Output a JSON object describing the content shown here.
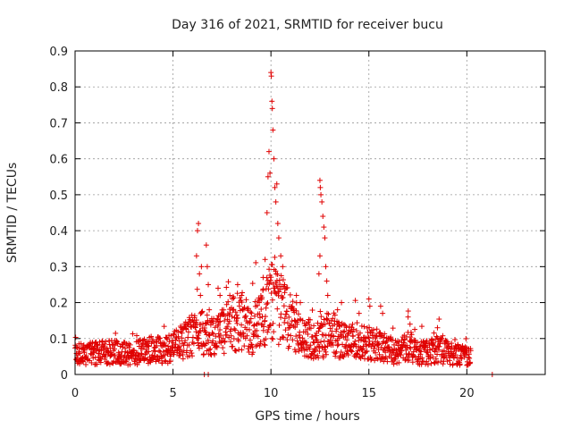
{
  "chart_data": {
    "type": "scatter",
    "title": "Day 316 of 2021, SRMTID for receiver bucu",
    "xlabel": "GPS time / hours",
    "ylabel": "SRMTID / TECUs",
    "xlim": [
      0,
      24
    ],
    "ylim": [
      0,
      0.9
    ],
    "xticks": [
      0,
      5,
      10,
      15,
      20
    ],
    "xtick_labels": [
      "0",
      "5",
      "10",
      "15",
      "20"
    ],
    "yticks": [
      0,
      0.1,
      0.2,
      0.3,
      0.4,
      0.5,
      0.6,
      0.7,
      0.8,
      0.9
    ],
    "ytick_labels": [
      "0",
      "0.1",
      "0.2",
      "0.3",
      "0.4",
      "0.5",
      "0.6",
      "0.7",
      "0.8",
      "0.9"
    ],
    "grid": true,
    "marker": "+",
    "color": "#e00000",
    "series": [
      {
        "name": "bucu",
        "baseline_profile": [
          [
            0.0,
            0.055
          ],
          [
            1.0,
            0.06
          ],
          [
            2.0,
            0.062
          ],
          [
            3.0,
            0.058
          ],
          [
            4.0,
            0.07
          ],
          [
            4.5,
            0.065
          ],
          [
            5.0,
            0.075
          ],
          [
            5.5,
            0.09
          ],
          [
            6.0,
            0.11
          ],
          [
            6.5,
            0.12
          ],
          [
            7.0,
            0.1
          ],
          [
            7.5,
            0.12
          ],
          [
            8.0,
            0.14
          ],
          [
            8.5,
            0.15
          ],
          [
            9.0,
            0.12
          ],
          [
            9.5,
            0.15
          ],
          [
            10.0,
            0.2
          ],
          [
            10.5,
            0.18
          ],
          [
            11.0,
            0.15
          ],
          [
            11.5,
            0.12
          ],
          [
            12.0,
            0.1
          ],
          [
            12.5,
            0.09
          ],
          [
            13.0,
            0.12
          ],
          [
            13.5,
            0.1
          ],
          [
            14.0,
            0.09
          ],
          [
            14.5,
            0.1
          ],
          [
            15.0,
            0.09
          ],
          [
            15.5,
            0.08
          ],
          [
            16.0,
            0.07
          ],
          [
            16.5,
            0.06
          ],
          [
            17.0,
            0.08
          ],
          [
            17.5,
            0.06
          ],
          [
            18.0,
            0.06
          ],
          [
            18.5,
            0.07
          ],
          [
            19.0,
            0.06
          ],
          [
            19.5,
            0.055
          ],
          [
            20.0,
            0.05
          ],
          [
            20.2,
            0.05
          ]
        ],
        "spike_points": [
          [
            6.2,
            0.33
          ],
          [
            6.25,
            0.4
          ],
          [
            6.3,
            0.42
          ],
          [
            6.35,
            0.28
          ],
          [
            6.4,
            0.22
          ],
          [
            6.45,
            0.3
          ],
          [
            6.7,
            0.36
          ],
          [
            6.75,
            0.3
          ],
          [
            6.8,
            0.25
          ],
          [
            6.85,
            0.18
          ],
          [
            7.3,
            0.24
          ],
          [
            7.4,
            0.22
          ],
          [
            7.9,
            0.22
          ],
          [
            8.3,
            0.25
          ],
          [
            8.5,
            0.22
          ],
          [
            9.4,
            0.2
          ],
          [
            9.6,
            0.27
          ],
          [
            9.7,
            0.32
          ],
          [
            9.8,
            0.45
          ],
          [
            9.85,
            0.55
          ],
          [
            9.9,
            0.62
          ],
          [
            9.95,
            0.56
          ],
          [
            10.0,
            0.84
          ],
          [
            10.02,
            0.83
          ],
          [
            10.05,
            0.76
          ],
          [
            10.07,
            0.74
          ],
          [
            10.1,
            0.68
          ],
          [
            10.15,
            0.6
          ],
          [
            10.2,
            0.52
          ],
          [
            10.25,
            0.48
          ],
          [
            10.3,
            0.53
          ],
          [
            10.35,
            0.42
          ],
          [
            10.4,
            0.38
          ],
          [
            10.5,
            0.33
          ],
          [
            10.6,
            0.3
          ],
          [
            10.7,
            0.25
          ],
          [
            11.3,
            0.22
          ],
          [
            11.5,
            0.2
          ],
          [
            12.5,
            0.54
          ],
          [
            12.52,
            0.52
          ],
          [
            12.55,
            0.5
          ],
          [
            12.6,
            0.48
          ],
          [
            12.65,
            0.44
          ],
          [
            12.7,
            0.41
          ],
          [
            12.75,
            0.38
          ],
          [
            12.5,
            0.33
          ],
          [
            12.8,
            0.3
          ],
          [
            12.85,
            0.26
          ],
          [
            12.45,
            0.28
          ],
          [
            12.9,
            0.22
          ],
          [
            13.4,
            0.18
          ],
          [
            13.6,
            0.2
          ],
          [
            14.5,
            0.17
          ],
          [
            15.0,
            0.21
          ],
          [
            15.05,
            0.19
          ],
          [
            15.6,
            0.19
          ],
          [
            15.7,
            0.17
          ],
          [
            17.0,
            0.16
          ],
          [
            17.1,
            0.14
          ],
          [
            18.5,
            0.13
          ]
        ],
        "zero_points": [
          [
            6.6,
            0.0
          ],
          [
            6.8,
            0.0
          ],
          [
            21.3,
            0.0
          ]
        ]
      }
    ]
  }
}
